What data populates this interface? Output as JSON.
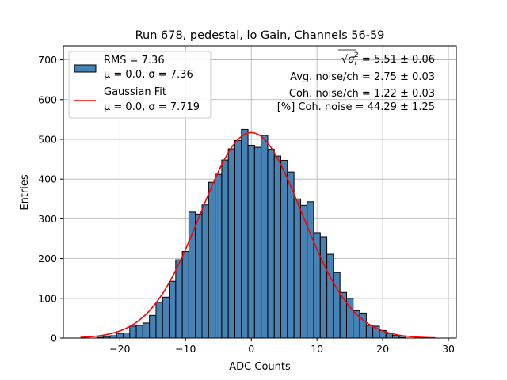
{
  "chart_data": {
    "type": "bar",
    "title": "Run 678, pedestal, lo Gain, Channels 56-59",
    "xlabel": "ADC Counts",
    "ylabel": "Entries",
    "xlim": [
      -28.6,
      31.2
    ],
    "ylim": [
      0,
      735
    ],
    "xticks": [
      -20,
      -10,
      0,
      10,
      20,
      30
    ],
    "yticks": [
      0,
      100,
      200,
      300,
      400,
      500,
      600,
      700
    ],
    "grid": true,
    "legend_position": "upper-left",
    "bin_width": 1,
    "bin_centers": [
      -23,
      -22,
      -21,
      -20,
      -19,
      -18,
      -17,
      -16,
      -15,
      -14,
      -13,
      -12,
      -11,
      -10,
      -9,
      -8,
      -7,
      -6,
      -5,
      -4,
      -3,
      -2,
      -1,
      0,
      1,
      2,
      3,
      4,
      5,
      6,
      7,
      8,
      9,
      10,
      11,
      12,
      13,
      14,
      15,
      16,
      17,
      18,
      19,
      20,
      21,
      22,
      23
    ],
    "values": [
      2,
      4,
      6,
      12,
      13,
      30,
      32,
      38,
      57,
      90,
      103,
      143,
      197,
      218,
      317,
      312,
      335,
      392,
      412,
      448,
      476,
      497,
      525,
      485,
      480,
      510,
      475,
      458,
      447,
      418,
      350,
      334,
      343,
      265,
      255,
      211,
      165,
      115,
      100,
      69,
      63,
      32,
      30,
      19,
      12,
      7,
      2
    ],
    "series": [
      {
        "name": "RMS = 7.36",
        "sub": "μ = 0.0, σ = 7.36",
        "kind": "histogram",
        "color": "#4682b4",
        "edge": "#000000"
      },
      {
        "name": "Gaussian Fit",
        "sub": "μ = 0.0, σ = 7.719",
        "kind": "curve",
        "color": "#ff0000",
        "mu": 0.0,
        "sigma": 7.719,
        "amplitude": 517,
        "x_range": [
          -26,
          28
        ]
      }
    ],
    "annotations": [
      {
        "prefix": "√",
        "var": "σ",
        "sup": "2",
        "sub": "i",
        "text": " = 5.51 ± 0.06"
      },
      {
        "text": "Avg. noise/ch = 2.75 ± 0.03"
      },
      {
        "text": "Coh. noise/ch = 1.22 ± 0.03"
      },
      {
        "text": "[%] Coh. noise = 44.29 ± 1.25"
      }
    ]
  }
}
